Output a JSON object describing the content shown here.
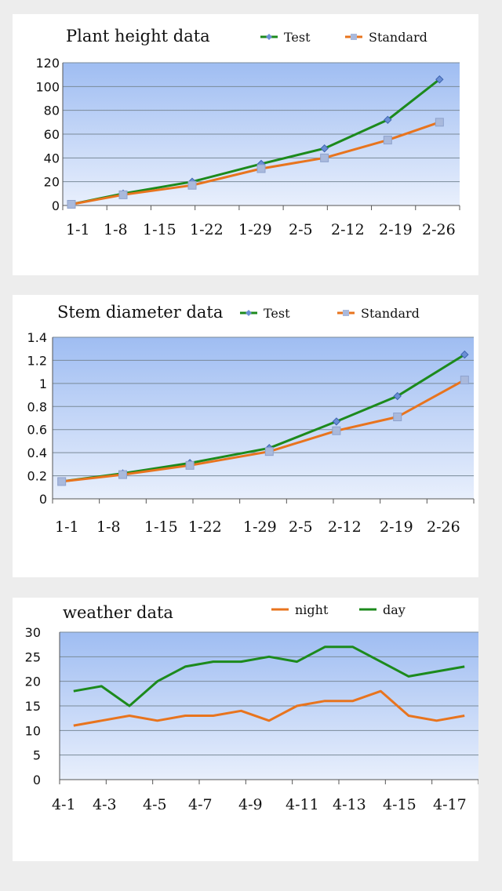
{
  "chart_data": [
    {
      "type": "line",
      "title": "Plant height data",
      "xlabel": "",
      "ylabel": "",
      "ylim": [
        0,
        120
      ],
      "yticks": [
        "0",
        "20",
        "40",
        "60",
        "80",
        "100",
        "120"
      ],
      "x_tick_labels": [
        "1-1",
        "1-8",
        "1-15",
        "1-22",
        "1-29",
        "2-5",
        "2-12",
        "2-19",
        "2-26"
      ],
      "x_range": [
        0,
        60
      ],
      "legend": "top",
      "grid": true,
      "series": [
        {
          "name": "Test",
          "color": "#1c8a1c",
          "marker": "diamond",
          "x": [
            0,
            9,
            21,
            33,
            44,
            55,
            64
          ],
          "y": [
            1,
            10,
            20,
            35,
            48,
            72,
            106
          ]
        },
        {
          "name": "Standard",
          "color": "#e8741e",
          "marker": "square",
          "x": [
            0,
            9,
            21,
            33,
            44,
            55,
            64
          ],
          "y": [
            1,
            9,
            17,
            31,
            40,
            55,
            70
          ]
        }
      ]
    },
    {
      "type": "line",
      "title": "Stem diameter data",
      "xlabel": "",
      "ylabel": "",
      "ylim": [
        0,
        1.4
      ],
      "yticks": [
        "0",
        "0.2",
        "0.4",
        "0.6",
        "0.8",
        "1",
        "1.2",
        "1.4"
      ],
      "x_tick_labels": [
        "1-1",
        "1-8",
        "1-15",
        "1-22",
        "1-29",
        "2-5",
        "2-12",
        "2-19",
        "2-26"
      ],
      "x_range": [
        0,
        60
      ],
      "legend": "top",
      "grid": true,
      "series": [
        {
          "name": "Test",
          "color": "#1c8a1c",
          "marker": "diamond",
          "x": [
            0,
            10,
            21,
            34,
            45,
            55,
            66
          ],
          "y": [
            0.15,
            0.22,
            0.31,
            0.44,
            0.67,
            0.89,
            1.25
          ]
        },
        {
          "name": "Standard",
          "color": "#e8741e",
          "marker": "square",
          "x": [
            0,
            10,
            21,
            34,
            45,
            55,
            66
          ],
          "y": [
            0.15,
            0.21,
            0.29,
            0.41,
            0.59,
            0.71,
            1.03
          ]
        }
      ]
    },
    {
      "type": "line",
      "title": "weather data",
      "xlabel": "",
      "ylabel": "",
      "ylim": [
        0,
        30
      ],
      "yticks": [
        "0",
        "5",
        "10",
        "15",
        "20",
        "25",
        "30"
      ],
      "x_tick_labels": [
        "4-1",
        "4-3",
        "4-5",
        "4-7",
        "4-9",
        "4-11",
        "4-13",
        "4-15",
        "4-17"
      ],
      "x_range": [
        1,
        17
      ],
      "legend": "top",
      "grid": true,
      "series": [
        {
          "name": "night",
          "color": "#e8741e",
          "marker": "none",
          "x": [
            1.2,
            2.4,
            3.6,
            4.8,
            6.0,
            7.2,
            8.4,
            9.6,
            10.8,
            12.0,
            13.2,
            14.4,
            15.6,
            16.8,
            18.0
          ],
          "y": [
            11,
            12,
            13,
            12,
            13,
            13,
            14,
            12,
            15,
            16,
            16,
            18,
            13,
            12,
            13
          ]
        },
        {
          "name": "day",
          "color": "#1c8a1c",
          "marker": "none",
          "x": [
            1.2,
            2.4,
            3.6,
            4.8,
            6.0,
            7.2,
            8.4,
            9.6,
            10.8,
            12.0,
            13.2,
            14.4,
            15.6,
            16.8,
            18.0
          ],
          "y": [
            18,
            19,
            15,
            20,
            23,
            24,
            24,
            25,
            24,
            27,
            27,
            24,
            21,
            22,
            23
          ]
        }
      ]
    }
  ]
}
